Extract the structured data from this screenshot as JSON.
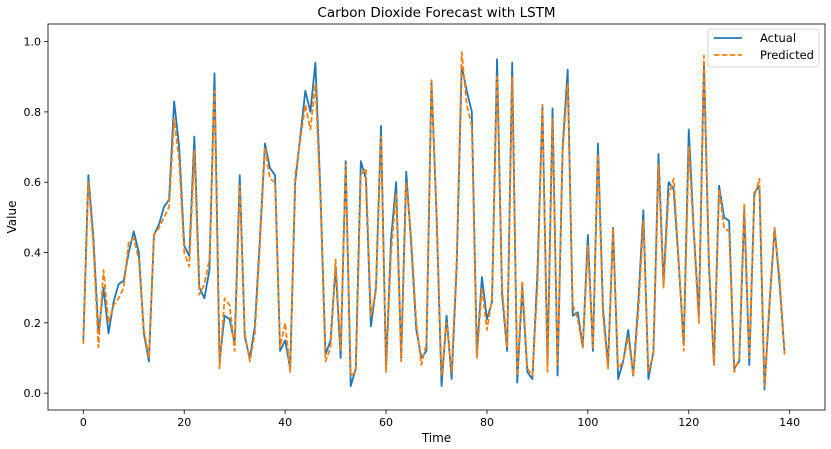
{
  "chart_data": {
    "type": "line",
    "title": "Carbon Dioxide Forecast with LSTM",
    "xlabel": "Time",
    "ylabel": "Value",
    "xlim": [
      -7,
      147
    ],
    "ylim": [
      -0.048,
      1.05
    ],
    "xticks": [
      0,
      20,
      40,
      60,
      80,
      100,
      120,
      140
    ],
    "yticks": [
      0.0,
      0.2,
      0.4,
      0.6,
      0.8,
      1.0
    ],
    "xtick_labels": [
      "0",
      "20",
      "40",
      "60",
      "80",
      "100",
      "120",
      "140"
    ],
    "ytick_labels": [
      "0.0",
      "0.2",
      "0.4",
      "0.6",
      "0.8",
      "1.0"
    ],
    "legend_position": "upper right",
    "grid": false,
    "series": [
      {
        "name": "Actual",
        "color": "#1f77b4",
        "style": "solid",
        "values": [
          0.15,
          0.62,
          0.44,
          0.17,
          0.3,
          0.17,
          0.26,
          0.31,
          0.32,
          0.4,
          0.46,
          0.4,
          0.17,
          0.09,
          0.45,
          0.48,
          0.53,
          0.55,
          0.83,
          0.7,
          0.42,
          0.39,
          0.73,
          0.3,
          0.27,
          0.35,
          0.91,
          0.09,
          0.22,
          0.21,
          0.14,
          0.62,
          0.16,
          0.1,
          0.19,
          0.44,
          0.71,
          0.64,
          0.62,
          0.12,
          0.15,
          0.07,
          0.6,
          0.73,
          0.86,
          0.8,
          0.94,
          0.57,
          0.11,
          0.15,
          0.36,
          0.1,
          0.66,
          0.02,
          0.07,
          0.66,
          0.61,
          0.19,
          0.3,
          0.76,
          0.07,
          0.44,
          0.6,
          0.1,
          0.63,
          0.42,
          0.18,
          0.1,
          0.12,
          0.89,
          0.51,
          0.02,
          0.22,
          0.04,
          0.36,
          0.93,
          0.86,
          0.8,
          0.11,
          0.33,
          0.21,
          0.26,
          0.95,
          0.28,
          0.12,
          0.94,
          0.03,
          0.3,
          0.06,
          0.04,
          0.34,
          0.82,
          0.08,
          0.81,
          0.05,
          0.7,
          0.92,
          0.22,
          0.23,
          0.13,
          0.45,
          0.12,
          0.71,
          0.24,
          0.08,
          0.47,
          0.04,
          0.09,
          0.18,
          0.05,
          0.26,
          0.52,
          0.04,
          0.12,
          0.68,
          0.31,
          0.6,
          0.58,
          0.37,
          0.14,
          0.75,
          0.46,
          0.22,
          0.94,
          0.36,
          0.08,
          0.59,
          0.5,
          0.49,
          0.07,
          0.09,
          0.52,
          0.08,
          0.57,
          0.59,
          0.01,
          0.25,
          0.47,
          0.31,
          0.11
        ]
      },
      {
        "name": "Predicted",
        "color": "#ff7f0e",
        "style": "dashed",
        "values": [
          0.14,
          0.6,
          0.42,
          0.13,
          0.35,
          0.2,
          0.25,
          0.27,
          0.3,
          0.43,
          0.44,
          0.38,
          0.18,
          0.1,
          0.45,
          0.47,
          0.5,
          0.53,
          0.78,
          0.66,
          0.4,
          0.36,
          0.69,
          0.28,
          0.31,
          0.38,
          0.86,
          0.07,
          0.27,
          0.25,
          0.12,
          0.59,
          0.17,
          0.09,
          0.17,
          0.42,
          0.7,
          0.61,
          0.6,
          0.13,
          0.2,
          0.06,
          0.62,
          0.72,
          0.82,
          0.75,
          0.88,
          0.55,
          0.09,
          0.13,
          0.38,
          0.12,
          0.65,
          0.05,
          0.06,
          0.62,
          0.64,
          0.22,
          0.29,
          0.73,
          0.06,
          0.4,
          0.57,
          0.09,
          0.6,
          0.44,
          0.2,
          0.08,
          0.14,
          0.89,
          0.52,
          0.05,
          0.2,
          0.06,
          0.38,
          0.97,
          0.82,
          0.76,
          0.1,
          0.3,
          0.18,
          0.27,
          0.9,
          0.3,
          0.13,
          0.9,
          0.05,
          0.32,
          0.07,
          0.05,
          0.3,
          0.82,
          0.06,
          0.78,
          0.08,
          0.69,
          0.88,
          0.25,
          0.21,
          0.13,
          0.42,
          0.13,
          0.68,
          0.22,
          0.07,
          0.47,
          0.07,
          0.09,
          0.16,
          0.05,
          0.23,
          0.49,
          0.06,
          0.11,
          0.65,
          0.3,
          0.56,
          0.61,
          0.38,
          0.12,
          0.7,
          0.45,
          0.2,
          0.96,
          0.38,
          0.08,
          0.58,
          0.47,
          0.46,
          0.06,
          0.1,
          0.54,
          0.1,
          0.56,
          0.61,
          0.02,
          0.26,
          0.47,
          0.33,
          0.11
        ]
      }
    ]
  }
}
